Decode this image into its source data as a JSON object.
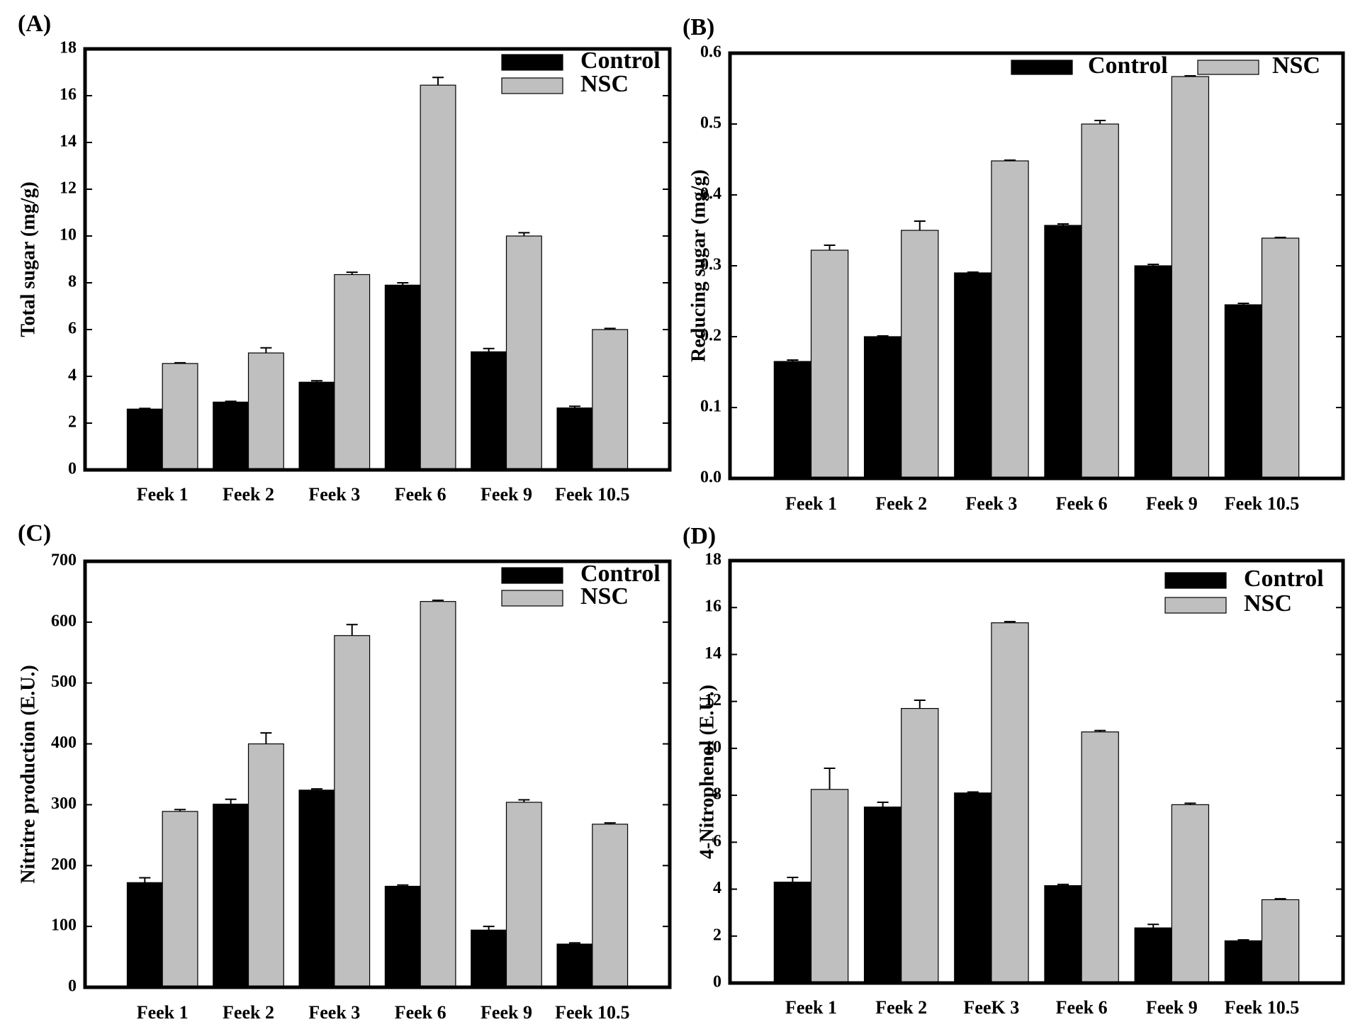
{
  "colors": {
    "control": "#000000",
    "nsc": "#bfbfbf",
    "axis": "#000000",
    "background": "#ffffff"
  },
  "chart_data": [
    {
      "panel_label": "(A)",
      "type": "bar",
      "title": "",
      "xlabel": "",
      "ylabel": "Total sugar (mg/g)",
      "ylim": [
        0,
        18
      ],
      "yticks": [
        0,
        2,
        4,
        6,
        8,
        10,
        12,
        14,
        16,
        18
      ],
      "ytick_labels": [
        "0",
        "2",
        "4",
        "6",
        "8",
        "10",
        "12",
        "14",
        "16",
        "18"
      ],
      "categories": [
        "Feek 1",
        "Feek 2",
        "Feek 3",
        "Feek 6",
        "Feek 9",
        "Feek 10.5"
      ],
      "series": [
        {
          "name": "Control",
          "values": [
            2.6,
            2.9,
            3.75,
            7.9,
            5.05,
            2.65
          ],
          "errors": [
            0.03,
            0.03,
            0.06,
            0.1,
            0.14,
            0.07
          ]
        },
        {
          "name": "NSC",
          "values": [
            4.55,
            5.0,
            8.35,
            16.45,
            10.0,
            6.0
          ],
          "errors": [
            0.03,
            0.22,
            0.1,
            0.33,
            0.14,
            0.05
          ]
        }
      ],
      "legend": {
        "entries": [
          "Control",
          "NSC"
        ],
        "position": "top-right"
      },
      "grid": false
    },
    {
      "panel_label": "(B)",
      "type": "bar",
      "title": "",
      "xlabel": "",
      "ylabel": "Reducing sugar (mg/g)",
      "ylim": [
        0,
        0.6
      ],
      "yticks": [
        0,
        0.1,
        0.2,
        0.3,
        0.4,
        0.5,
        0.6
      ],
      "ytick_labels": [
        "0.0",
        "0.1",
        "0.2",
        "0.3",
        "0.4",
        "0.5",
        "0.6"
      ],
      "categories": [
        "Feek 1",
        "Feek 2",
        "Feek 3",
        "Feek 6",
        "Feek 9",
        "Feek 10.5"
      ],
      "series": [
        {
          "name": "Control",
          "values": [
            0.165,
            0.2,
            0.29,
            0.357,
            0.3,
            0.245
          ],
          "errors": [
            0.002,
            0.001,
            0.001,
            0.002,
            0.002,
            0.002
          ]
        },
        {
          "name": "NSC",
          "values": [
            0.322,
            0.35,
            0.448,
            0.5,
            0.567,
            0.339
          ],
          "errors": [
            0.007,
            0.013,
            0.001,
            0.005,
            0.001,
            0.001
          ]
        }
      ],
      "legend": {
        "entries": [
          "Control",
          "NSC"
        ],
        "position": "top-right"
      },
      "grid": false
    },
    {
      "panel_label": "(C)",
      "type": "bar",
      "title": "",
      "xlabel": "",
      "ylabel": "Nitritre production (E.U.)",
      "ylim": [
        0,
        700
      ],
      "yticks": [
        0,
        100,
        200,
        300,
        400,
        500,
        600,
        700
      ],
      "ytick_labels": [
        "0",
        "100",
        "200",
        "300",
        "400",
        "500",
        "600",
        "700"
      ],
      "categories": [
        "Feek 1",
        "Feek 2",
        "Feek 3",
        "Feek 6",
        "Feek 9",
        "Feek 10.5"
      ],
      "series": [
        {
          "name": "Control",
          "values": [
            172,
            301,
            324,
            166,
            94,
            71
          ],
          "errors": [
            8,
            8,
            2,
            2,
            6,
            2
          ]
        },
        {
          "name": "NSC",
          "values": [
            289,
            400,
            578,
            634,
            304,
            268
          ],
          "errors": [
            3,
            18,
            18,
            2,
            4,
            2
          ]
        }
      ],
      "legend": {
        "entries": [
          "Control",
          "NSC"
        ],
        "position": "top-right"
      },
      "grid": false
    },
    {
      "panel_label": "(D)",
      "type": "bar",
      "title": "",
      "xlabel": "",
      "ylabel": "4-Nitrophenol (E.U.)",
      "ylim": [
        0,
        18
      ],
      "yticks": [
        0,
        2,
        4,
        6,
        8,
        10,
        12,
        14,
        16,
        18
      ],
      "ytick_labels": [
        "0",
        "2",
        "4",
        "6",
        "8",
        "10",
        "12",
        "14",
        "16",
        "18"
      ],
      "categories": [
        "Feek 1",
        "Feek 2",
        "FeeK 3",
        "Feek 6",
        "Feek 9",
        "Feek 10.5"
      ],
      "series": [
        {
          "name": "Control",
          "values": [
            4.3,
            7.5,
            8.1,
            4.15,
            2.35,
            1.8
          ],
          "errors": [
            0.2,
            0.2,
            0.04,
            0.05,
            0.15,
            0.04
          ]
        },
        {
          "name": "NSC",
          "values": [
            8.25,
            11.7,
            15.35,
            10.7,
            7.6,
            3.55
          ],
          "errors": [
            0.9,
            0.35,
            0.05,
            0.06,
            0.06,
            0.04
          ]
        }
      ],
      "legend": {
        "entries": [
          "Control",
          "NSC"
        ],
        "position": "top-right"
      },
      "grid": false
    }
  ]
}
